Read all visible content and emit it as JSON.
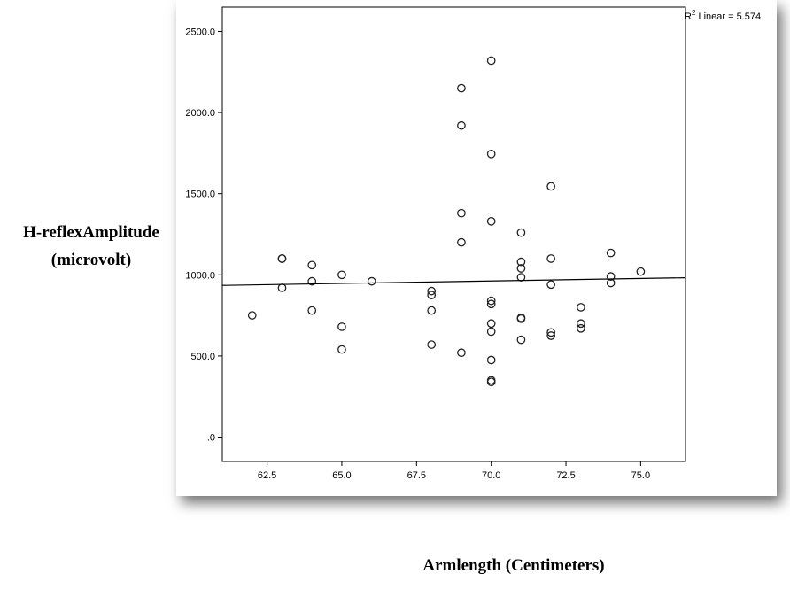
{
  "chart_data": {
    "type": "scatter",
    "title": "",
    "xlabel": "Armlength (Centimeters)",
    "ylabel_lines": [
      "H-reflexAmplitude",
      "(microvolt)"
    ],
    "xlim": [
      61.0,
      76.5
    ],
    "ylim": [
      -150,
      2650
    ],
    "x_ticks": [
      62.5,
      65.0,
      67.5,
      70.0,
      72.5,
      75.0
    ],
    "x_tick_labels": [
      "62.5",
      "65.0",
      "67.5",
      "70.0",
      "72.5",
      "75.0"
    ],
    "y_ticks": [
      0,
      500,
      1000,
      1500,
      2000,
      2500
    ],
    "y_tick_labels": [
      ".0",
      "500.0",
      "1000.0",
      "1500.0",
      "2000.0",
      "2500.0"
    ],
    "fit_line": {
      "label_prefix": "R",
      "label_sup": "2",
      "label_rest": " Linear = 5.574",
      "y_at_xmin": 935,
      "y_at_xmax": 982
    },
    "points": [
      {
        "x": 62,
        "y": 750
      },
      {
        "x": 63,
        "y": 1100
      },
      {
        "x": 63,
        "y": 1100
      },
      {
        "x": 63,
        "y": 920
      },
      {
        "x": 64,
        "y": 1060
      },
      {
        "x": 64,
        "y": 960
      },
      {
        "x": 64,
        "y": 780
      },
      {
        "x": 65,
        "y": 1000
      },
      {
        "x": 65,
        "y": 680
      },
      {
        "x": 65,
        "y": 540
      },
      {
        "x": 66,
        "y": 960
      },
      {
        "x": 68,
        "y": 900
      },
      {
        "x": 68,
        "y": 875
      },
      {
        "x": 68,
        "y": 780
      },
      {
        "x": 68,
        "y": 570
      },
      {
        "x": 69,
        "y": 2150
      },
      {
        "x": 69,
        "y": 1920
      },
      {
        "x": 69,
        "y": 1380
      },
      {
        "x": 69,
        "y": 1200
      },
      {
        "x": 69,
        "y": 520
      },
      {
        "x": 70,
        "y": 2320
      },
      {
        "x": 70,
        "y": 1745
      },
      {
        "x": 70,
        "y": 1330
      },
      {
        "x": 70,
        "y": 840
      },
      {
        "x": 70,
        "y": 820
      },
      {
        "x": 70,
        "y": 700
      },
      {
        "x": 70,
        "y": 650
      },
      {
        "x": 70,
        "y": 475
      },
      {
        "x": 70,
        "y": 350
      },
      {
        "x": 70,
        "y": 340
      },
      {
        "x": 71,
        "y": 1260
      },
      {
        "x": 71,
        "y": 1080
      },
      {
        "x": 71,
        "y": 1040
      },
      {
        "x": 71,
        "y": 985
      },
      {
        "x": 71,
        "y": 735
      },
      {
        "x": 71,
        "y": 730
      },
      {
        "x": 71,
        "y": 600
      },
      {
        "x": 72,
        "y": 1545
      },
      {
        "x": 72,
        "y": 1100
      },
      {
        "x": 72,
        "y": 940
      },
      {
        "x": 72,
        "y": 645
      },
      {
        "x": 72,
        "y": 625
      },
      {
        "x": 73,
        "y": 800
      },
      {
        "x": 73,
        "y": 700
      },
      {
        "x": 73,
        "y": 670
      },
      {
        "x": 74,
        "y": 1135
      },
      {
        "x": 74,
        "y": 990
      },
      {
        "x": 74,
        "y": 950
      },
      {
        "x": 75,
        "y": 1020
      }
    ]
  }
}
